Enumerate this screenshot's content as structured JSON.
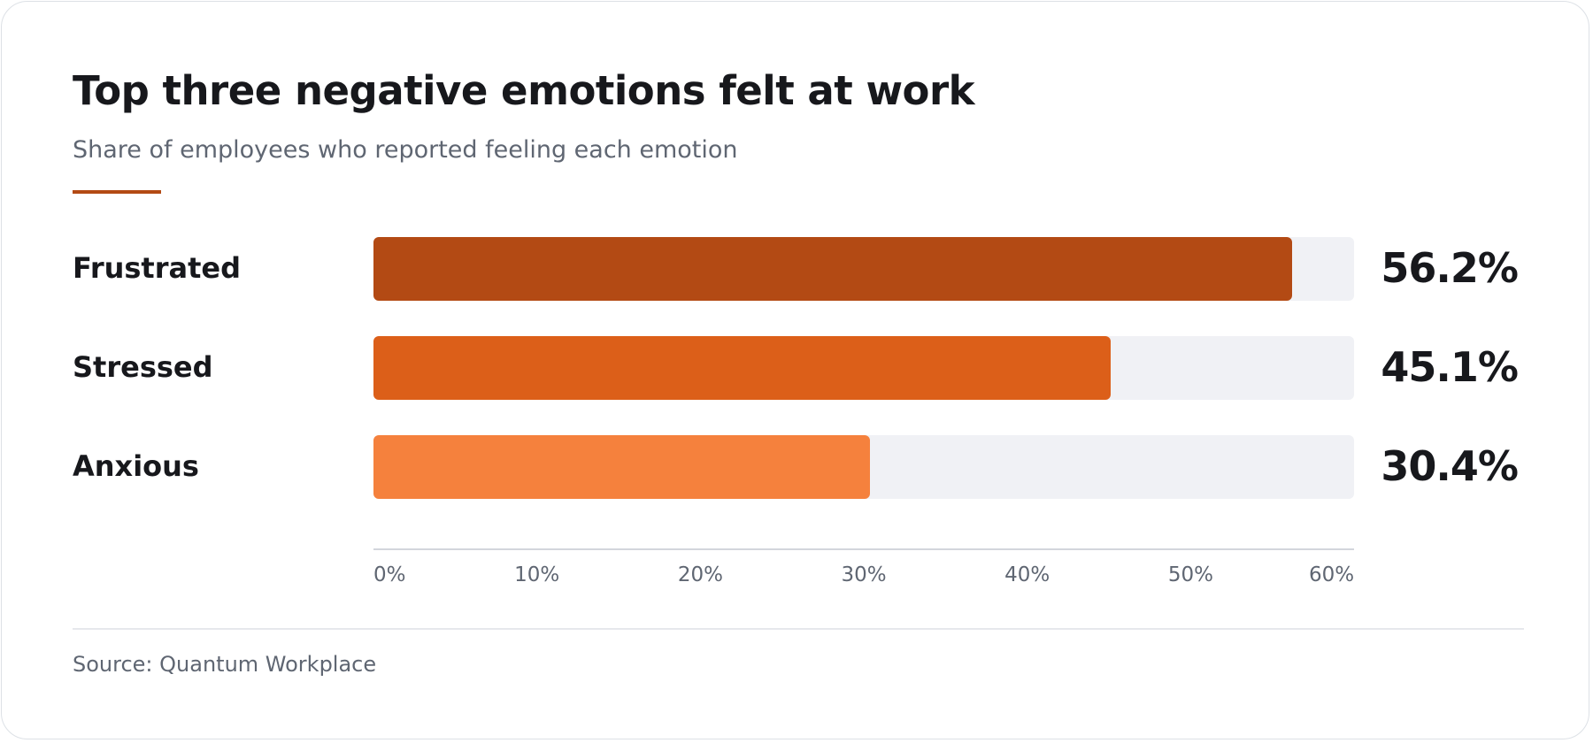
{
  "chart_data": {
    "type": "bar",
    "orientation": "horizontal",
    "title": "Top three negative emotions felt at work",
    "subtitle": "Share of employees who reported feeling each emotion",
    "categories": [
      "Frustrated",
      "Stressed",
      "Anxious"
    ],
    "values": [
      56.2,
      45.1,
      30.4
    ],
    "value_labels": [
      "56.2%",
      "45.1%",
      "30.4%"
    ],
    "colors": [
      "#b34a14",
      "#dc5f19",
      "#f5813d"
    ],
    "xlim": [
      0,
      60
    ],
    "xticks": [
      0,
      10,
      20,
      30,
      40,
      50,
      60
    ],
    "xtick_labels": [
      "0%",
      "10%",
      "20%",
      "30%",
      "40%",
      "50%",
      "60%"
    ],
    "grid": false,
    "legend": "none",
    "source": "Source: Quantum Workplace"
  },
  "theme": {
    "accent": "#b34a14",
    "track": "#f0f1f5"
  }
}
